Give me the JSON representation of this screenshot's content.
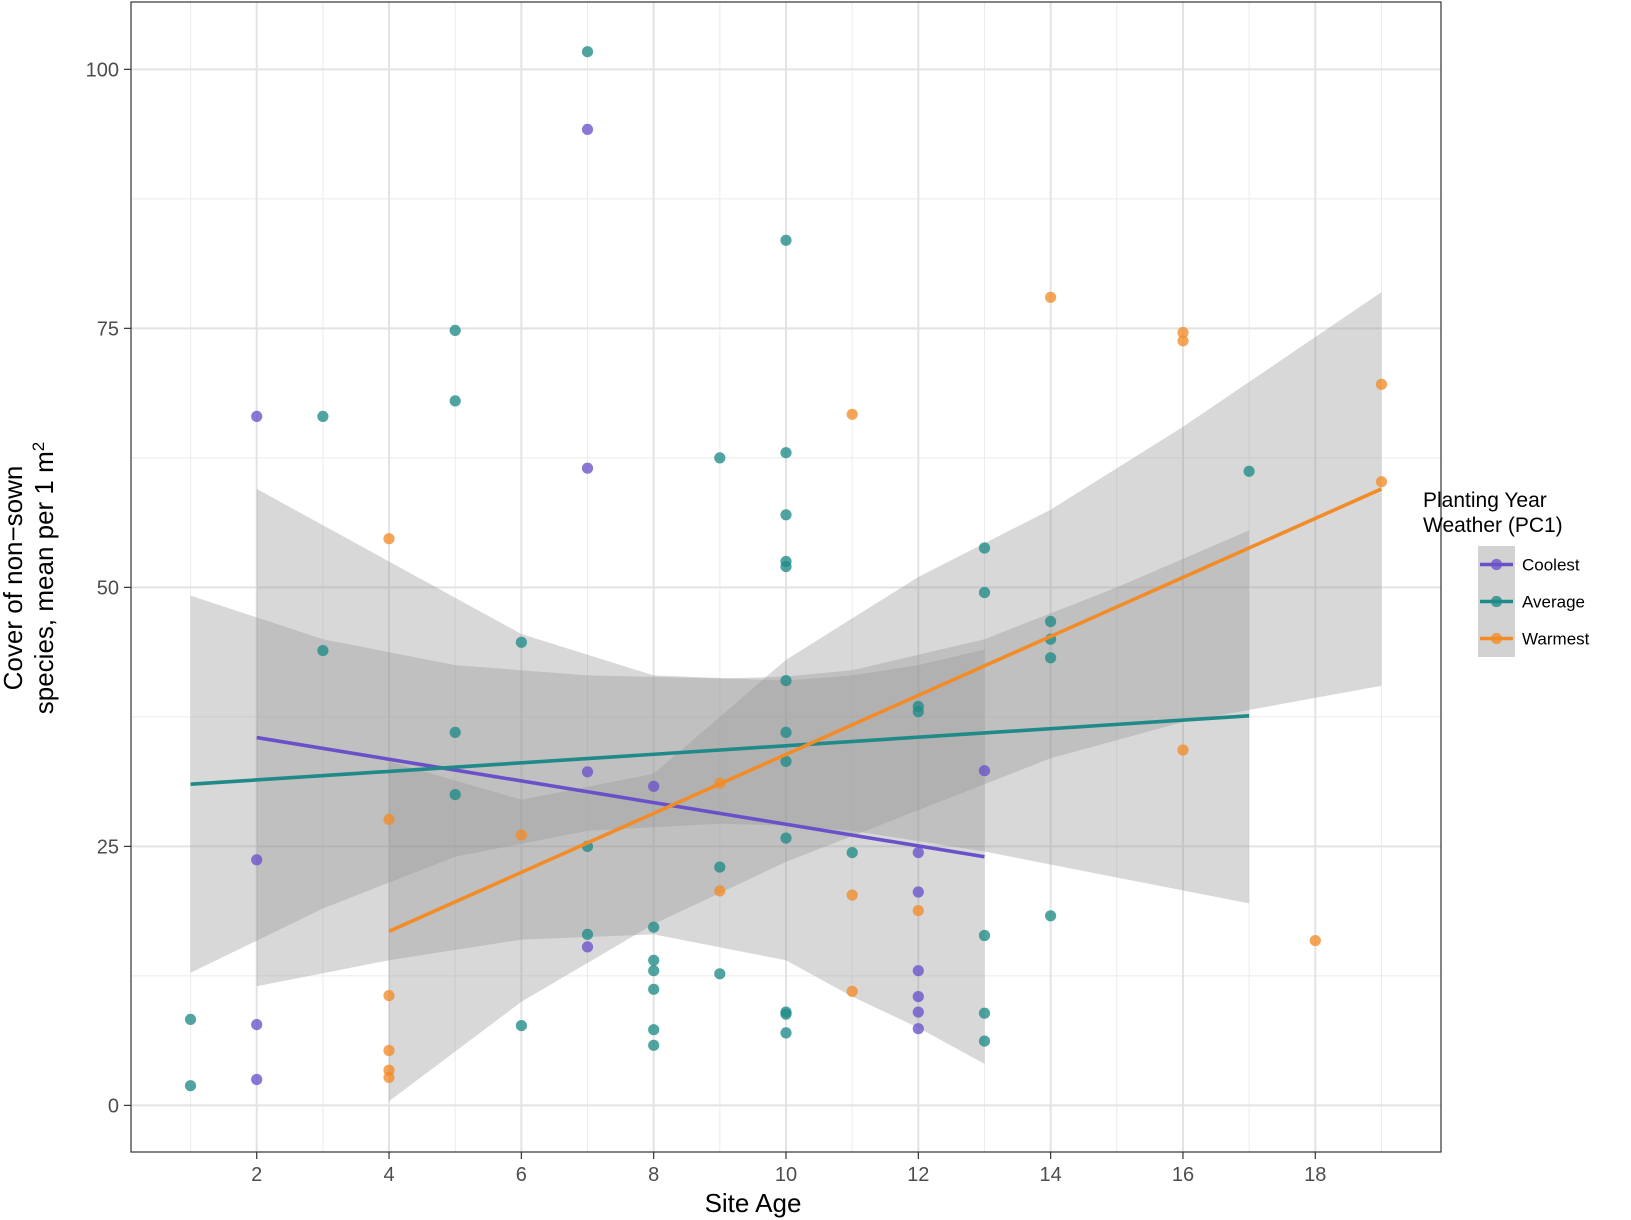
{
  "chart_data": {
    "type": "scatter",
    "xlabel": "Site Age",
    "ylabel_line1": "Cover of non−sown",
    "ylabel_line2": "species, mean per 1 m",
    "ylabel_superscript": "2",
    "xlim": [
      0.1,
      19.9
    ],
    "ylim": [
      -4.5,
      106.5
    ],
    "x_ticks": [
      2,
      4,
      6,
      8,
      10,
      12,
      14,
      16,
      18
    ],
    "x_tick_labels": [
      "2",
      "4",
      "6",
      "8",
      "10",
      "12",
      "14",
      "16",
      "18"
    ],
    "y_ticks": [
      0,
      25,
      50,
      75,
      100
    ],
    "y_tick_labels": [
      "0",
      "25",
      "50",
      "75",
      "100"
    ],
    "grid": true,
    "legend": {
      "title_line1": "Planting Year",
      "title_line2": "Weather (PC1)",
      "position": "right"
    },
    "series": [
      {
        "name": "Coolest",
        "color": "#6a51c9",
        "fit": {
          "x": [
            2,
            13
          ],
          "y": [
            35.5,
            24.0
          ]
        },
        "band": {
          "x": [
            2,
            4,
            6,
            8,
            10,
            11,
            12,
            13
          ],
          "lower": [
            11.5,
            14.0,
            16.0,
            16.5,
            14.0,
            10.5,
            7.5,
            4.0
          ],
          "upper": [
            59.5,
            52.5,
            45.5,
            41.5,
            41.0,
            41.5,
            42.5,
            44.0
          ]
        },
        "points": [
          [
            2,
            66.5
          ],
          [
            2,
            23.7
          ],
          [
            2,
            7.8
          ],
          [
            2,
            2.5
          ],
          [
            7,
            94.2
          ],
          [
            7,
            61.5
          ],
          [
            7,
            32.2
          ],
          [
            7,
            15.3
          ],
          [
            8,
            30.8
          ],
          [
            12,
            24.4
          ],
          [
            12,
            20.6
          ],
          [
            12,
            13.0
          ],
          [
            12,
            10.5
          ],
          [
            12,
            9.0
          ],
          [
            12,
            7.4
          ],
          [
            13,
            32.3
          ]
        ]
      },
      {
        "name": "Average",
        "color": "#1f8a87",
        "fit": {
          "x": [
            1,
            17
          ],
          "y": [
            31.0,
            37.6
          ]
        },
        "band": {
          "x": [
            1,
            3,
            5,
            7,
            9,
            10,
            11,
            13,
            15,
            17
          ],
          "lower": [
            12.8,
            19.0,
            24.0,
            26.5,
            27.2,
            27.0,
            26.5,
            24.5,
            22.0,
            19.5
          ],
          "upper": [
            49.2,
            45.0,
            42.5,
            41.5,
            41.2,
            41.4,
            42.0,
            45.0,
            50.0,
            55.5
          ]
        },
        "points": [
          [
            1,
            8.3
          ],
          [
            1,
            1.9
          ],
          [
            3,
            66.5
          ],
          [
            3,
            43.9
          ],
          [
            5,
            74.8
          ],
          [
            5,
            68.0
          ],
          [
            5,
            36.0
          ],
          [
            5,
            30.0
          ],
          [
            6,
            44.7
          ],
          [
            6,
            7.7
          ],
          [
            7,
            101.7
          ],
          [
            7,
            25.0
          ],
          [
            7,
            16.5
          ],
          [
            8,
            17.2
          ],
          [
            8,
            14.0
          ],
          [
            8,
            13.0
          ],
          [
            8,
            11.2
          ],
          [
            8,
            7.3
          ],
          [
            8,
            5.8
          ],
          [
            9,
            62.5
          ],
          [
            9,
            23.0
          ],
          [
            9,
            12.7
          ],
          [
            10,
            83.5
          ],
          [
            10,
            63.0
          ],
          [
            10,
            57.0
          ],
          [
            10,
            52.5
          ],
          [
            10,
            52.0
          ],
          [
            10,
            41.0
          ],
          [
            10,
            36.0
          ],
          [
            10,
            33.2
          ],
          [
            10,
            25.8
          ],
          [
            10,
            9.0
          ],
          [
            10,
            8.8
          ],
          [
            10,
            7.0
          ],
          [
            11,
            24.4
          ],
          [
            12,
            38.5
          ],
          [
            12,
            38.0
          ],
          [
            13,
            53.8
          ],
          [
            13,
            49.5
          ],
          [
            13,
            16.4
          ],
          [
            13,
            8.9
          ],
          [
            13,
            6.2
          ],
          [
            14,
            46.7
          ],
          [
            14,
            45.0
          ],
          [
            14,
            43.2
          ],
          [
            14,
            18.3
          ],
          [
            17,
            61.2
          ]
        ]
      },
      {
        "name": "Warmest",
        "color": "#f28c28",
        "fit": {
          "x": [
            4,
            19
          ],
          "y": [
            16.8,
            59.5
          ]
        },
        "band": {
          "x": [
            4,
            6,
            8,
            10,
            11,
            12,
            14,
            16,
            19
          ],
          "lower": [
            0.4,
            10.0,
            17.5,
            23.5,
            26.0,
            28.5,
            33.5,
            37.0,
            40.5
          ],
          "upper": [
            33.2,
            29.5,
            32.0,
            43.0,
            47.0,
            51.0,
            57.5,
            65.5,
            78.5
          ]
        },
        "points": [
          [
            4,
            54.7
          ],
          [
            4,
            27.6
          ],
          [
            4,
            10.6
          ],
          [
            4,
            5.3
          ],
          [
            4,
            3.4
          ],
          [
            4,
            2.7
          ],
          [
            6,
            26.1
          ],
          [
            9,
            31.1
          ],
          [
            9,
            20.7
          ],
          [
            11,
            66.7
          ],
          [
            11,
            20.3
          ],
          [
            11,
            11.0
          ],
          [
            12,
            18.8
          ],
          [
            14,
            78.0
          ],
          [
            16,
            74.6
          ],
          [
            16,
            73.8
          ],
          [
            16,
            34.3
          ],
          [
            18,
            15.9
          ],
          [
            19,
            69.6
          ],
          [
            19,
            60.2
          ]
        ]
      }
    ]
  }
}
